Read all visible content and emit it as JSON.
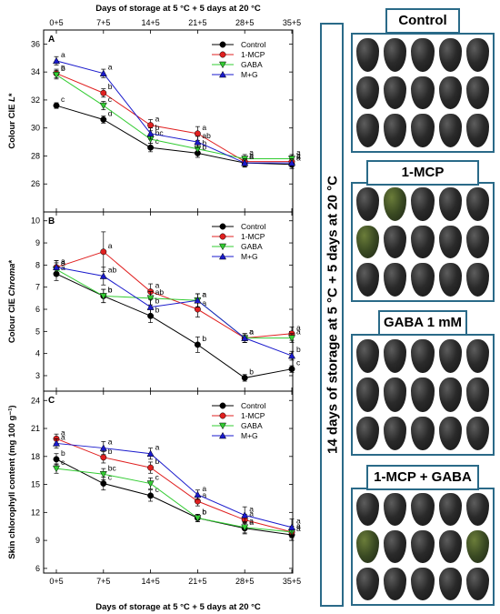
{
  "figure": {
    "top_axis_title": "Days of storage at 5 °C + 5 days at 20 °C",
    "bottom_axis_title": "Days of storage at 5 °C + 5 days at 20 °C",
    "x_ticks": [
      "0+5",
      "7+5",
      "14+5",
      "21+5",
      "28+5",
      "35+5"
    ],
    "series_styles": [
      {
        "name": "Control",
        "color": "#000000",
        "marker": "circle"
      },
      {
        "name": "1-MCP",
        "color": "#e02020",
        "marker": "circle"
      },
      {
        "name": "GABA",
        "color": "#33cc33",
        "marker": "triangle-down"
      },
      {
        "name": "M+G",
        "color": "#1a1acc",
        "marker": "triangle-up"
      }
    ]
  },
  "chart_data": [
    {
      "panel": "A",
      "type": "line",
      "ylabel_main": "Colour CIE ",
      "ylabel_italic": "L",
      "ylabel_suffix": "*",
      "ylim": [
        24,
        37
      ],
      "yticks": [
        26,
        28,
        30,
        32,
        34,
        36
      ],
      "categories": [
        "0+5",
        "7+5",
        "14+5",
        "21+5",
        "28+5",
        "35+5"
      ],
      "legend_position": "top-right",
      "series": [
        {
          "name": "Control",
          "values": [
            31.6,
            30.6,
            28.6,
            28.2,
            27.5,
            27.4
          ],
          "err": [
            0.2,
            0.25,
            0.3,
            0.3,
            0.25,
            0.3
          ],
          "letters": [
            "c",
            "d",
            "c",
            "b",
            "a",
            "a"
          ]
        },
        {
          "name": "1-MCP",
          "values": [
            33.9,
            32.5,
            30.2,
            29.6,
            27.6,
            27.6
          ],
          "err": [
            0.3,
            0.3,
            0.4,
            0.5,
            0.3,
            0.3
          ],
          "letters": [
            "a",
            "b",
            "a",
            "a",
            "a",
            "a"
          ]
        },
        {
          "name": "GABA",
          "values": [
            33.8,
            31.6,
            29.2,
            28.5,
            27.8,
            27.8
          ],
          "err": [
            0.3,
            0.3,
            0.3,
            0.3,
            0.3,
            0.3
          ],
          "letters": [
            "b",
            "c",
            "bc",
            "b",
            "a",
            "a"
          ]
        },
        {
          "name": "M+G",
          "values": [
            34.8,
            33.9,
            29.6,
            29.0,
            27.5,
            27.5
          ],
          "err": [
            0.3,
            0.3,
            0.4,
            0.4,
            0.3,
            0.3
          ],
          "letters": [
            "a",
            "a",
            "b",
            "ab",
            "a",
            "a"
          ]
        }
      ]
    },
    {
      "panel": "B",
      "type": "line",
      "ylabel_main": "Colour CIE ",
      "ylabel_italic": "Chroma",
      "ylabel_suffix": "*",
      "ylim": [
        2.3,
        10.4
      ],
      "yticks": [
        3,
        4,
        5,
        6,
        7,
        8,
        9,
        10
      ],
      "categories": [
        "0+5",
        "7+5",
        "14+5",
        "21+5",
        "28+5",
        "35+5"
      ],
      "legend_position": "top-right",
      "series": [
        {
          "name": "Control",
          "values": [
            7.6,
            6.6,
            5.7,
            4.4,
            2.9,
            3.3
          ],
          "err": [
            0.3,
            0.3,
            0.3,
            0.35,
            0.15,
            0.15
          ],
          "letters": [
            "a",
            "b",
            "b",
            "b",
            "b",
            "c"
          ]
        },
        {
          "name": "1-MCP",
          "values": [
            7.9,
            8.6,
            6.8,
            6.0,
            4.7,
            4.9
          ],
          "err": [
            0.3,
            0.9,
            0.35,
            0.35,
            0.2,
            0.3
          ],
          "letters": [
            "a",
            "a",
            "a",
            "a",
            "a",
            "a"
          ]
        },
        {
          "name": "GABA",
          "values": [
            7.8,
            6.6,
            6.5,
            6.4,
            4.7,
            4.7
          ],
          "err": [
            0.3,
            0.3,
            0.3,
            0.3,
            0.2,
            0.2
          ],
          "letters": [
            "a",
            "b",
            "ab",
            "a",
            "a",
            "a"
          ]
        },
        {
          "name": "M+G",
          "values": [
            7.9,
            7.5,
            6.1,
            6.4,
            4.7,
            3.9
          ],
          "err": [
            0.3,
            0.4,
            0.35,
            0.3,
            0.2,
            0.2
          ],
          "letters": [
            "a",
            "ab",
            "b",
            "a",
            "a",
            "b"
          ]
        }
      ]
    },
    {
      "panel": "C",
      "type": "line",
      "ylabel_main": "Skin chlorophyll content (mg 100 g",
      "ylabel_italic": "",
      "ylabel_suffix": "⁻¹)",
      "ylim": [
        5.5,
        25
      ],
      "yticks": [
        6,
        9,
        12,
        15,
        18,
        21,
        24
      ],
      "categories": [
        "0+5",
        "7+5",
        "14+5",
        "21+5",
        "28+5",
        "35+5"
      ],
      "legend_position": "top-right",
      "series": [
        {
          "name": "Control",
          "values": [
            17.7,
            15.1,
            13.8,
            11.4,
            10.3,
            9.6
          ],
          "err": [
            0.6,
            0.7,
            0.6,
            0.4,
            0.6,
            0.6
          ],
          "letters": [
            "b",
            "c",
            "c",
            "b",
            "a",
            "a"
          ]
        },
        {
          "name": "1-MCP",
          "values": [
            19.9,
            17.9,
            16.8,
            13.2,
            11.2,
            9.9
          ],
          "err": [
            0.5,
            0.6,
            0.6,
            0.5,
            0.6,
            0.6
          ],
          "letters": [
            "a",
            "b",
            "b",
            "a",
            "a",
            "a"
          ]
        },
        {
          "name": "GABA",
          "values": [
            16.7,
            16.1,
            15.1,
            11.4,
            10.4,
            9.9
          ],
          "err": [
            0.5,
            0.6,
            0.6,
            0.4,
            0.6,
            0.6
          ],
          "letters": [
            "c",
            "bc",
            "c",
            "b",
            "a",
            "a"
          ]
        },
        {
          "name": "M+G",
          "values": [
            19.4,
            18.9,
            18.3,
            13.9,
            11.7,
            10.4
          ],
          "err": [
            0.5,
            0.7,
            0.6,
            0.5,
            0.9,
            0.9
          ],
          "letters": [
            "a",
            "a",
            "a",
            "a",
            "a",
            "a"
          ]
        }
      ]
    }
  ],
  "photos": {
    "side_label": "14 days of storage at 5 °C + 5 days at 20 °C",
    "panels": [
      {
        "title": "Control",
        "green_fruits": []
      },
      {
        "title": "1-MCP",
        "green_fruits": [
          1,
          5
        ]
      },
      {
        "title": "GABA 1 mM",
        "green_fruits": []
      },
      {
        "title": "1-MCP + GABA",
        "green_fruits": [
          5,
          9
        ]
      }
    ]
  }
}
